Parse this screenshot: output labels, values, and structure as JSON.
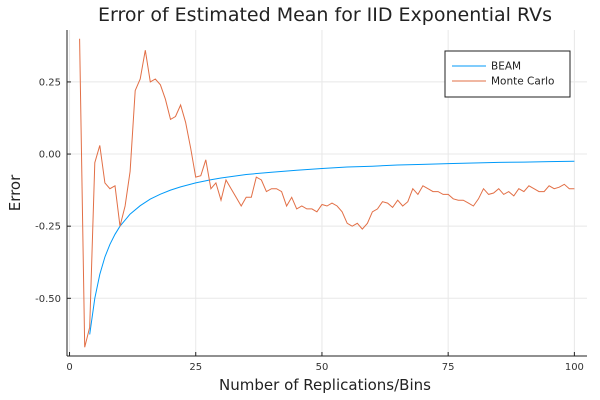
{
  "chart_data": {
    "type": "line",
    "title": "Error of Estimated Mean for IID Exponential RVs",
    "xlabel": "Number of Replications/Bins",
    "ylabel": "Error",
    "xlim": [
      -0.5,
      102.5
    ],
    "ylim": [
      -0.7,
      0.43
    ],
    "x_ticks": [
      0,
      25,
      50,
      75,
      100
    ],
    "x_tick_labels": [
      "0",
      "25",
      "50",
      "75",
      "100"
    ],
    "y_ticks": [
      -0.5,
      -0.25,
      0.0,
      0.25
    ],
    "y_tick_labels": [
      "-0.50",
      "-0.25",
      "0.00",
      "0.25"
    ],
    "grid": true,
    "legend_position": "top-right",
    "series": [
      {
        "name": "BEAM",
        "color": "#009af9",
        "x": [
          4,
          5,
          6,
          7,
          8,
          9,
          10,
          12,
          14,
          16,
          18,
          20,
          22,
          25,
          28,
          30,
          35,
          40,
          45,
          50,
          55,
          60,
          65,
          70,
          75,
          80,
          85,
          90,
          95,
          100
        ],
        "y": [
          -0.625,
          -0.5,
          -0.417,
          -0.357,
          -0.313,
          -0.278,
          -0.25,
          -0.208,
          -0.179,
          -0.156,
          -0.139,
          -0.125,
          -0.114,
          -0.1,
          -0.089,
          -0.083,
          -0.071,
          -0.063,
          -0.056,
          -0.05,
          -0.045,
          -0.042,
          -0.038,
          -0.036,
          -0.033,
          -0.031,
          -0.029,
          -0.028,
          -0.026,
          -0.025
        ]
      },
      {
        "name": "Monte Carlo",
        "color": "#e26f46",
        "x": [
          2,
          3,
          4,
          5,
          6,
          7,
          8,
          9,
          10,
          11,
          12,
          13,
          14,
          15,
          16,
          17,
          18,
          19,
          20,
          21,
          22,
          23,
          24,
          25,
          26,
          27,
          28,
          29,
          30,
          31,
          32,
          33,
          34,
          35,
          36,
          37,
          38,
          39,
          40,
          41,
          42,
          43,
          44,
          45,
          46,
          47,
          48,
          49,
          50,
          51,
          52,
          53,
          54,
          55,
          56,
          57,
          58,
          59,
          60,
          61,
          62,
          63,
          64,
          65,
          66,
          67,
          68,
          69,
          70,
          71,
          72,
          73,
          74,
          75,
          76,
          77,
          78,
          79,
          80,
          81,
          82,
          83,
          84,
          85,
          86,
          87,
          88,
          89,
          90,
          91,
          92,
          93,
          94,
          95,
          96,
          97,
          98,
          99,
          100
        ],
        "y": [
          0.4,
          -0.67,
          -0.6,
          -0.03,
          0.03,
          -0.1,
          -0.12,
          -0.11,
          -0.25,
          -0.18,
          -0.06,
          0.22,
          0.26,
          0.36,
          0.25,
          0.26,
          0.24,
          0.19,
          0.12,
          0.13,
          0.17,
          0.11,
          0.02,
          -0.08,
          -0.075,
          -0.02,
          -0.12,
          -0.1,
          -0.16,
          -0.09,
          -0.12,
          -0.15,
          -0.18,
          -0.15,
          -0.15,
          -0.08,
          -0.09,
          -0.13,
          -0.12,
          -0.12,
          -0.13,
          -0.18,
          -0.15,
          -0.19,
          -0.18,
          -0.19,
          -0.19,
          -0.2,
          -0.175,
          -0.18,
          -0.17,
          -0.18,
          -0.2,
          -0.24,
          -0.25,
          -0.24,
          -0.26,
          -0.24,
          -0.2,
          -0.19,
          -0.165,
          -0.17,
          -0.185,
          -0.16,
          -0.18,
          -0.165,
          -0.12,
          -0.14,
          -0.11,
          -0.12,
          -0.13,
          -0.13,
          -0.14,
          -0.14,
          -0.155,
          -0.16,
          -0.16,
          -0.17,
          -0.18,
          -0.155,
          -0.12,
          -0.14,
          -0.135,
          -0.12,
          -0.14,
          -0.13,
          -0.145,
          -0.12,
          -0.13,
          -0.11,
          -0.12,
          -0.13,
          -0.13,
          -0.11,
          -0.12,
          -0.115,
          -0.105,
          -0.12,
          -0.12
        ]
      }
    ]
  }
}
